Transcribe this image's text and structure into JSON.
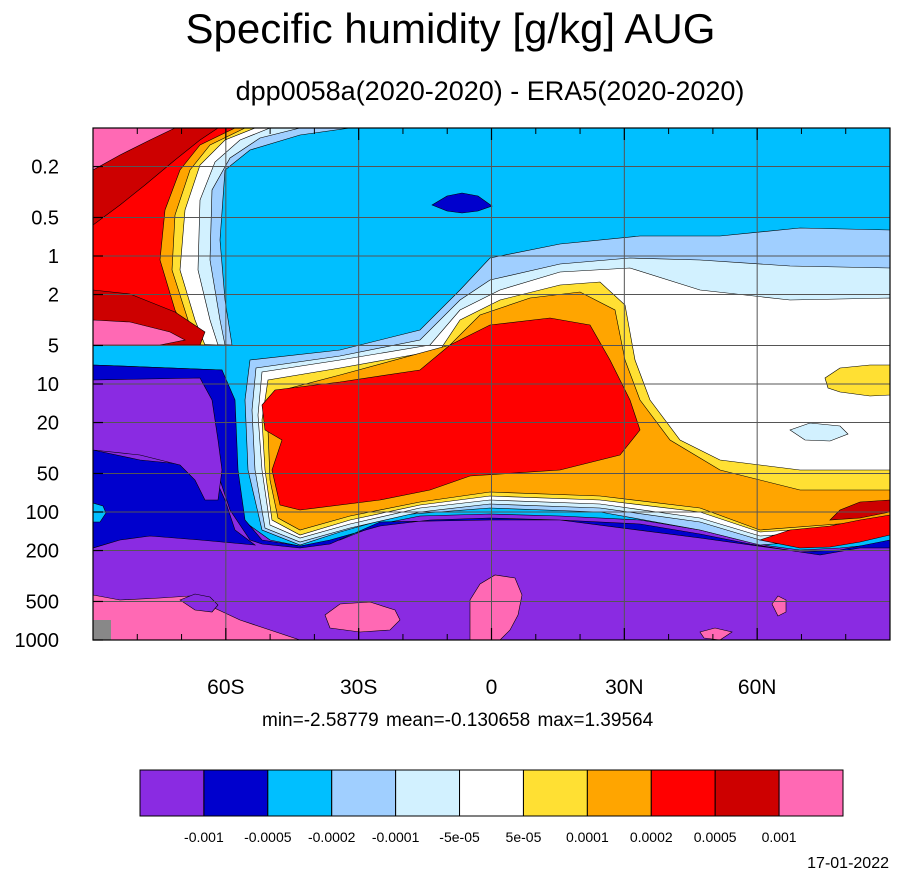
{
  "chart_data": {
    "type": "heatmap",
    "title": "Specific humidity [g/kg] AUG",
    "subtitle": "dpp0058a(2020-2020) - ERA5(2020-2020)",
    "stats": "min=-2.58779   mean=-0.130658   max=1.39564",
    "date": "17-01-2022",
    "x_axis": {
      "range": [
        -90,
        90
      ],
      "ticks": [
        {
          "value": -60,
          "label": "60S"
        },
        {
          "value": -30,
          "label": "30S"
        },
        {
          "value": 0,
          "label": "0"
        },
        {
          "value": 30,
          "label": "30N"
        },
        {
          "value": 60,
          "label": "60N"
        }
      ]
    },
    "y_axis": {
      "scale": "log",
      "reversed": true,
      "range": [
        1000,
        0.1
      ],
      "ticks": [
        {
          "value": 0.2,
          "label": "0.2"
        },
        {
          "value": 0.5,
          "label": "0.5"
        },
        {
          "value": 1,
          "label": "1"
        },
        {
          "value": 2,
          "label": "2"
        },
        {
          "value": 5,
          "label": "5"
        },
        {
          "value": 10,
          "label": "10"
        },
        {
          "value": 20,
          "label": "20"
        },
        {
          "value": 50,
          "label": "50"
        },
        {
          "value": 100,
          "label": "100"
        },
        {
          "value": 200,
          "label": "200"
        },
        {
          "value": 500,
          "label": "500"
        },
        {
          "value": 1000,
          "label": "1000"
        }
      ]
    },
    "grid": true,
    "colorbar": {
      "colors": [
        "#8a2be2",
        "#0000cd",
        "#00bfff",
        "#a0cfff",
        "#d2f1ff",
        "#ffffff",
        "#ffe033",
        "#ffa500",
        "#ff0000",
        "#cd0000",
        "#ff69b4"
      ],
      "labels": [
        "-0.001",
        "-0.0005",
        "-0.0002",
        "-0.0001",
        "-5e-05",
        "5e-05",
        "0.0001",
        "0.0002",
        "0.0005",
        "0.001"
      ]
    }
  }
}
